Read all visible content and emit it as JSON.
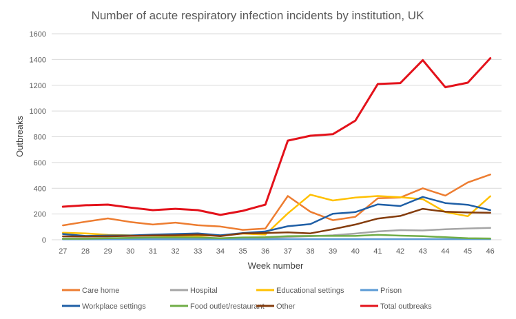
{
  "chart_data": {
    "type": "line",
    "title": "Number of acute respiratory infection incidents by institution, UK",
    "xlabel": "Week number",
    "ylabel": "Outbreaks",
    "ylim": [
      0,
      1600
    ],
    "yticks": [
      0,
      200,
      400,
      600,
      800,
      1000,
      1200,
      1400,
      1600
    ],
    "grid": true,
    "legend_position": "bottom",
    "categories": [
      "27",
      "28",
      "29",
      "30",
      "31",
      "32",
      "33",
      "34",
      "35",
      "36",
      "37",
      "38",
      "39",
      "40",
      "41",
      "42",
      "43",
      "44",
      "45",
      "46"
    ],
    "series": [
      {
        "name": "Care home",
        "color": "#ed7d31",
        "values": [
          112,
          140,
          166,
          138,
          118,
          133,
          113,
          103,
          77,
          87,
          340,
          218,
          152,
          178,
          322,
          328,
          400,
          343,
          445,
          507
        ]
      },
      {
        "name": "Hospital",
        "color": "#a5a5a5",
        "values": [
          10,
          10,
          10,
          10,
          10,
          12,
          10,
          10,
          10,
          12,
          22,
          28,
          35,
          48,
          65,
          75,
          72,
          82,
          88,
          92
        ]
      },
      {
        "name": "Educational settings",
        "color": "#ffc000",
        "values": [
          55,
          50,
          38,
          35,
          32,
          30,
          30,
          35,
          48,
          40,
          205,
          350,
          305,
          328,
          340,
          330,
          315,
          215,
          183,
          338
        ]
      },
      {
        "name": "Prison",
        "color": "#5b9bd5",
        "values": [
          3,
          3,
          3,
          3,
          3,
          3,
          3,
          3,
          3,
          3,
          5,
          5,
          5,
          5,
          5,
          5,
          5,
          5,
          5,
          5
        ]
      },
      {
        "name": "Workplace settings",
        "color": "#1f5fa6",
        "values": [
          45,
          30,
          33,
          33,
          40,
          45,
          50,
          35,
          52,
          65,
          105,
          122,
          202,
          215,
          275,
          262,
          333,
          285,
          272,
          230
        ]
      },
      {
        "name": "Food outlet/restaurant",
        "color": "#70ad47",
        "values": [
          8,
          8,
          12,
          15,
          18,
          18,
          18,
          12,
          18,
          20,
          28,
          30,
          30,
          30,
          38,
          32,
          28,
          20,
          12,
          10
        ]
      },
      {
        "name": "Other",
        "color": "#843c0c",
        "values": [
          27,
          25,
          27,
          30,
          33,
          35,
          40,
          28,
          50,
          52,
          57,
          50,
          82,
          118,
          165,
          185,
          240,
          218,
          212,
          210
        ]
      },
      {
        "name": "Total outbreaks",
        "color": "#e3121b",
        "values": [
          257,
          268,
          273,
          250,
          230,
          240,
          230,
          193,
          225,
          273,
          770,
          808,
          820,
          925,
          1210,
          1217,
          1395,
          1185,
          1220,
          1410
        ]
      }
    ]
  }
}
